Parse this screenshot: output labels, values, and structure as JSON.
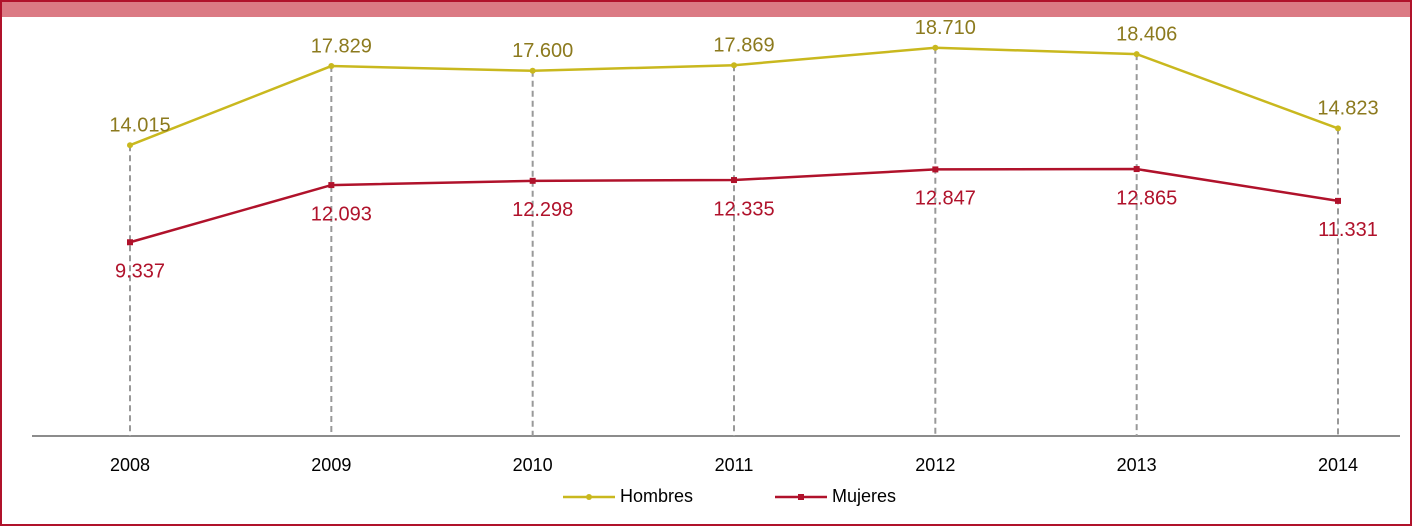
{
  "chart_data": {
    "type": "line",
    "categories": [
      "2008",
      "2009",
      "2010",
      "2011",
      "2012",
      "2013",
      "2014"
    ],
    "series": [
      {
        "name": "Hombres",
        "color": "#c9b81e",
        "label_color": "#8c7a1e",
        "values": [
          14015,
          17829,
          17600,
          17869,
          18710,
          18406,
          14823
        ],
        "value_labels": [
          "14.015",
          "17.829",
          "17.600",
          "17.869",
          "18.710",
          "18.406",
          "14.823"
        ]
      },
      {
        "name": "Mujeres",
        "color": "#b0122b",
        "label_color": "#b0122b",
        "values": [
          9337,
          12093,
          12298,
          12335,
          12847,
          12865,
          11331
        ],
        "value_labels": [
          "9.337",
          "12.093",
          "12.298",
          "12.335",
          "12.847",
          "12.865",
          "11.331"
        ]
      }
    ],
    "ylim": [
      0,
      20000
    ],
    "legend": "bottom"
  }
}
